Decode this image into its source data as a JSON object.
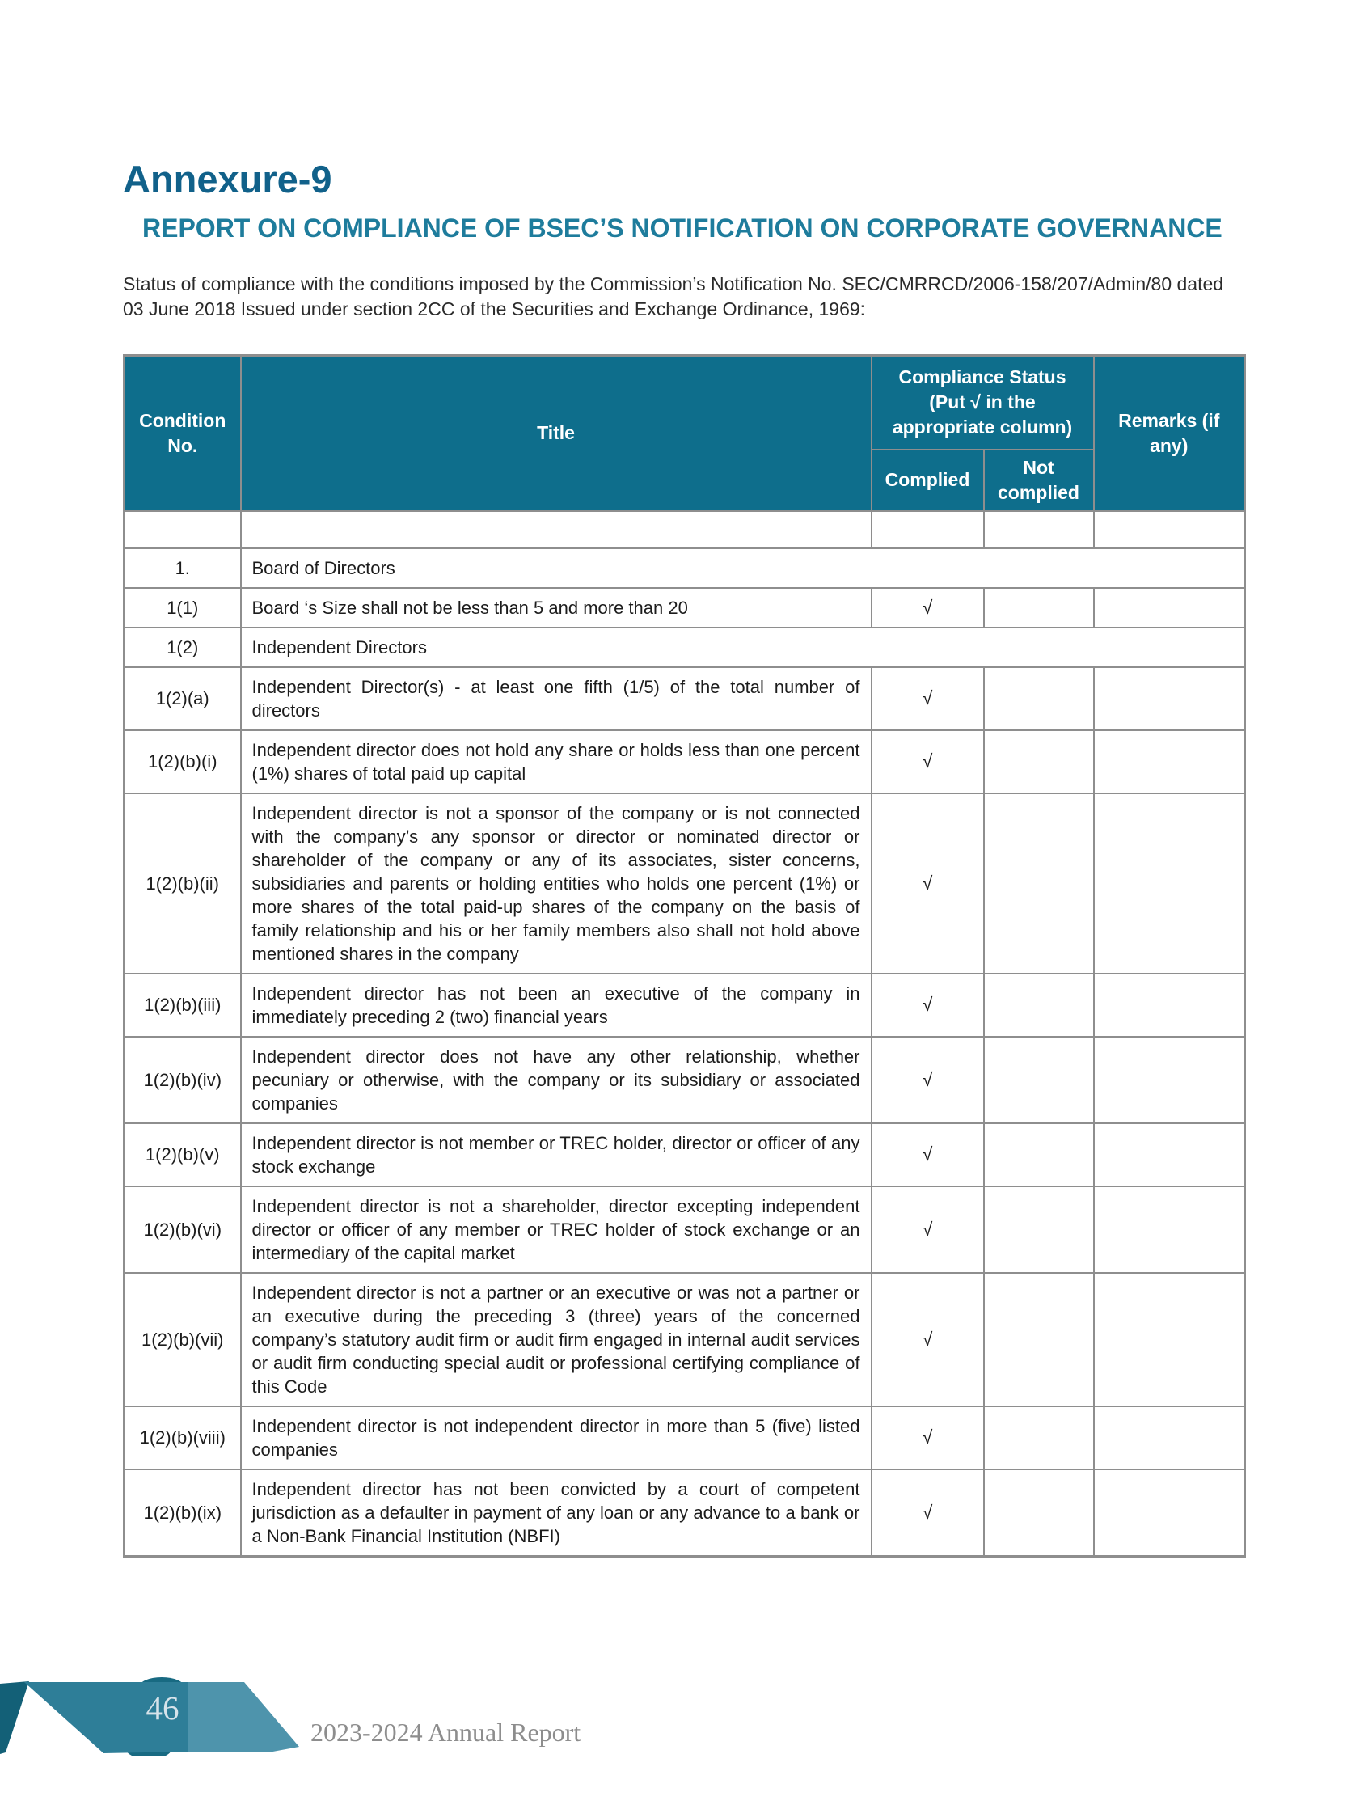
{
  "page": {
    "annexure_title": "Annexure-9",
    "report_title": "REPORT ON COMPLIANCE OF BSEC’S NOTIFICATION ON CORPORATE GOVERNANCE",
    "intro": "Status of compliance with the conditions imposed by the Commission’s Notification No. SEC/CMRRCD/2006-158/207/Admin/80 dated 03 June 2018 Issued under section 2CC of the Securities and Exchange Ordinance, 1969:"
  },
  "colors": {
    "annexure_title": "#11618A",
    "report_title": "#1E7C9C",
    "table_header_bg": "#0E6E8C",
    "table_border": "#8e8e8e",
    "ribbon_dark": "#136077",
    "ribbon_medium": "#2E7E98",
    "ribbon_light": "#4E94AC",
    "footer_text": "#8d8d8d"
  },
  "table": {
    "headers": {
      "condition_no": "Condition No.",
      "title": "Title",
      "compliance_status": "Compliance Status (Put √ in the appropriate column)",
      "complied": "Complied",
      "not_complied": "Not complied",
      "remarks": "Remarks (if any)"
    },
    "rows": [
      {
        "no": "",
        "title": "",
        "complied": "",
        "not_complied": "",
        "remarks": "",
        "span": false,
        "empty": true
      },
      {
        "no": "1.",
        "title": "Board of Directors",
        "complied": "",
        "not_complied": "",
        "remarks": "",
        "span": true,
        "empty": false
      },
      {
        "no": "1(1)",
        "title": "Board ‘s Size shall not be less than 5 and more than 20",
        "complied": "√",
        "not_complied": "",
        "remarks": "",
        "span": false,
        "empty": false
      },
      {
        "no": "1(2)",
        "title": "Independent Directors",
        "complied": "",
        "not_complied": "",
        "remarks": "",
        "span": true,
        "empty": false
      },
      {
        "no": "1(2)(a)",
        "title": "Independent Director(s) - at least one fifth (1/5) of the total number of directors",
        "complied": "√",
        "not_complied": "",
        "remarks": "",
        "span": false,
        "empty": false
      },
      {
        "no": "1(2)(b)(i)",
        "title": "Independent director does not hold any share or holds less than one percent (1%) shares of total paid up capital",
        "complied": "√",
        "not_complied": "",
        "remarks": "",
        "span": false,
        "empty": false
      },
      {
        "no": "1(2)(b)(ii)",
        "title": "Independent director is not a sponsor of the company or is not connected with the company’s any sponsor or director or nominated director or shareholder of the company or any of its associates, sister concerns, subsidiaries and parents or holding entities who holds one percent (1%) or more shares of the total paid-up shares of the company on the basis of family relationship and his or her family members also shall not hold above mentioned shares in the company",
        "complied": "√",
        "not_complied": "",
        "remarks": "",
        "span": false,
        "empty": false
      },
      {
        "no": "1(2)(b)(iii)",
        "title": "Independent director has not been an executive of the company in immediately preceding 2 (two) financial years",
        "complied": "√",
        "not_complied": "",
        "remarks": "",
        "span": false,
        "empty": false
      },
      {
        "no": "1(2)(b)(iv)",
        "title": "Independent director does not have any other relationship, whether pecuniary or otherwise, with the company or its subsidiary or associated companies",
        "complied": "√",
        "not_complied": "",
        "remarks": "",
        "span": false,
        "empty": false
      },
      {
        "no": "1(2)(b)(v)",
        "title": "Independent director is not member or TREC holder, director or officer of any stock exchange",
        "complied": "√",
        "not_complied": "",
        "remarks": "",
        "span": false,
        "empty": false
      },
      {
        "no": "1(2)(b)(vi)",
        "title": "Independent director is not a shareholder, director excepting independent director or officer of any member or TREC holder of stock exchange or an intermediary of the capital market",
        "complied": "√",
        "not_complied": "",
        "remarks": "",
        "span": false,
        "empty": false
      },
      {
        "no": "1(2)(b)(vii)",
        "title": "Independent director is not a partner or an executive or was not a partner or an executive during the preceding 3 (three) years of the concerned company’s statutory audit firm or audit firm engaged in internal audit services or audit firm conducting special audit or professional certifying compliance of this Code",
        "complied": "√",
        "not_complied": "",
        "remarks": "",
        "span": false,
        "empty": false
      },
      {
        "no": "1(2)(b)(viii)",
        "title": "Independent director is not independent director in more than 5 (five) listed companies",
        "complied": "√",
        "not_complied": "",
        "remarks": "",
        "span": false,
        "empty": false
      },
      {
        "no": "1(2)(b)(ix)",
        "title": "Independent director has not been convicted by a court of competent jurisdiction as a defaulter in payment of any loan or any advance to a bank or a Non-Bank Financial Institution (NBFI)",
        "complied": "√",
        "not_complied": "",
        "remarks": "",
        "span": false,
        "empty": false
      }
    ]
  },
  "footer": {
    "page_number": "46",
    "report_label": "2023-2024 Annual Report"
  }
}
